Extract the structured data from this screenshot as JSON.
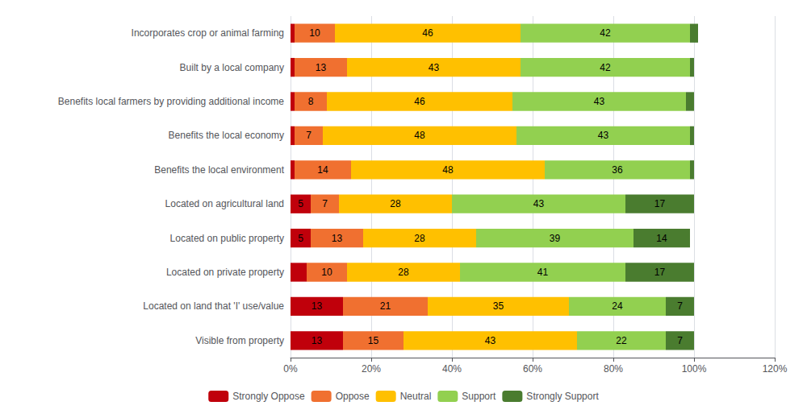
{
  "chart_data": {
    "type": "bar",
    "orientation": "horizontal",
    "stacked": true,
    "grid": true,
    "legend": "bottom",
    "data_labels": true,
    "categories": [
      "Incorporates crop or animal farming",
      "Built by a local company",
      "Benefits local farmers by providing additional income",
      "Benefits the local economy",
      "Benefits the local environment",
      "Located on agricultural land",
      "Located on public property",
      "Located on private property",
      "Located on land that 'I' use/value",
      "Visible from property"
    ],
    "series": [
      {
        "name": "Strongly Oppose",
        "color": "#c0000b",
        "values": [
          1,
          1,
          1,
          1,
          1,
          5,
          5,
          4,
          13,
          13
        ],
        "value_labels": [
          null,
          null,
          null,
          null,
          null,
          "5",
          "5",
          null,
          "13",
          "13"
        ]
      },
      {
        "name": "Oppose",
        "color": "#f07030",
        "values": [
          10,
          13,
          8,
          7,
          14,
          7,
          13,
          10,
          21,
          15
        ],
        "value_labels": [
          "10",
          "13",
          "8",
          "7",
          "14",
          "7",
          "13",
          "10",
          "21",
          "15"
        ]
      },
      {
        "name": "Neutral",
        "color": "#ffc000",
        "values": [
          46,
          43,
          46,
          48,
          48,
          28,
          28,
          28,
          35,
          43
        ],
        "value_labels": [
          "46",
          "43",
          "46",
          "48",
          "48",
          "28",
          "28",
          "28",
          "35",
          "43"
        ]
      },
      {
        "name": "Support",
        "color": "#92d050",
        "values": [
          42,
          42,
          43,
          43,
          36,
          43,
          39,
          41,
          24,
          22
        ],
        "value_labels": [
          "42",
          "42",
          "43",
          "43",
          "36",
          "43",
          "39",
          "41",
          "24",
          "22"
        ]
      },
      {
        "name": "Strongly Support",
        "color": "#4a7c2f",
        "values": [
          2,
          1,
          2,
          1,
          1,
          17,
          14,
          17,
          7,
          7
        ],
        "value_labels": [
          null,
          null,
          null,
          null,
          null,
          "17",
          "14",
          "17",
          "7",
          "7"
        ]
      }
    ],
    "xlim": [
      0,
      120
    ],
    "xticks": [
      {
        "value": 0,
        "label": "0%"
      },
      {
        "value": 20,
        "label": "20%"
      },
      {
        "value": 40,
        "label": "40%"
      },
      {
        "value": 60,
        "label": "60%"
      },
      {
        "value": 80,
        "label": "80%"
      },
      {
        "value": 100,
        "label": "100%"
      },
      {
        "value": 120,
        "label": "120%"
      }
    ]
  }
}
